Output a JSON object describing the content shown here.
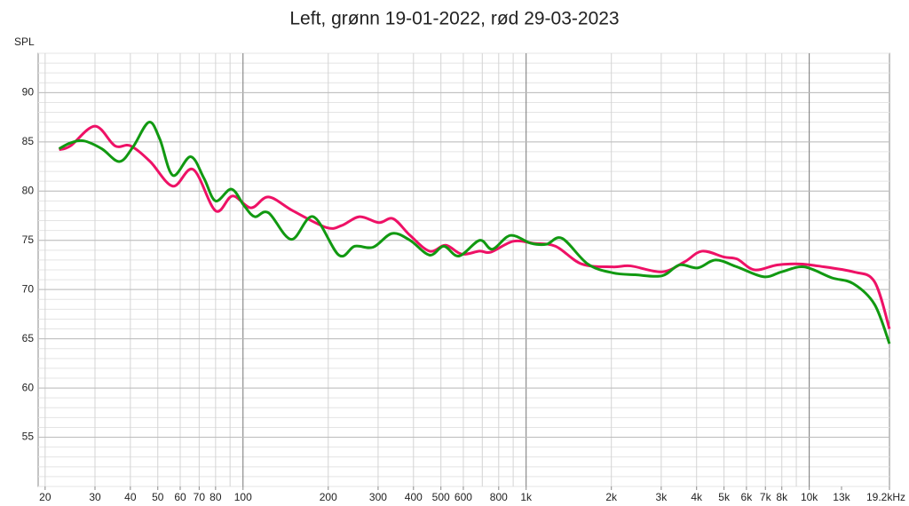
{
  "chart_data": {
    "type": "line",
    "title": "Left, grønn 19-01-2022, rød 29-03-2023",
    "y_label": "SPL",
    "x_scale": "log",
    "grid": true,
    "xlim": [
      18.9,
      19200
    ],
    "ylim": [
      50,
      94
    ],
    "yticks": [
      55,
      60,
      65,
      70,
      75,
      80,
      85,
      90
    ],
    "xticks": [
      20,
      30,
      40,
      50,
      60,
      70,
      80,
      100,
      200,
      300,
      400,
      500,
      600,
      800,
      {
        "value": 1000,
        "label": "1k"
      },
      {
        "value": 2000,
        "label": "2k"
      },
      {
        "value": 3000,
        "label": "3k"
      },
      {
        "value": 4000,
        "label": "4k"
      },
      {
        "value": 5000,
        "label": "5k"
      },
      {
        "value": 6000,
        "label": "6k"
      },
      {
        "value": 7000,
        "label": "7k"
      },
      {
        "value": 8000,
        "label": "8k"
      },
      {
        "value": 10000,
        "label": "10k"
      },
      {
        "value": 13000,
        "label": "13k"
      },
      {
        "value": 19200,
        "label": "19.2kHz"
      }
    ],
    "series": [
      {
        "name": "rød 29-03-2023",
        "color": "#ee1166",
        "x": [
          22.4,
          24.6,
          30,
          35.3,
          40,
          47,
          56.5,
          66.7,
          80,
          91.7,
          106.7,
          123,
          150,
          197,
          223,
          258,
          302,
          339,
          389,
          456,
          520,
          592,
          685,
          750,
          900,
          1060,
          1270,
          1570,
          2020,
          2340,
          3020,
          3620,
          4180,
          5000,
          5560,
          6410,
          7700,
          9240,
          10700,
          14300,
          17000,
          19200
        ],
        "values": [
          84.2,
          84.6,
          86.6,
          84.6,
          84.6,
          83,
          80.5,
          82.2,
          78,
          79.5,
          78.3,
          79.4,
          78,
          76.3,
          76.5,
          77.4,
          76.8,
          77.2,
          75.5,
          73.9,
          74.5,
          73.6,
          73.9,
          73.8,
          74.9,
          74.7,
          74.4,
          72.6,
          72.3,
          72.4,
          71.8,
          72.8,
          73.9,
          73.3,
          73.1,
          72,
          72.5,
          72.6,
          72.4,
          71.8,
          70.8,
          66
        ]
      },
      {
        "name": "grønn 19-01-2022",
        "color": "#119911",
        "x": [
          22.4,
          24.6,
          27.4,
          31.7,
          36.6,
          40.9,
          46.5,
          50.8,
          56.5,
          65.3,
          72.8,
          80,
          91,
          101,
          110,
          123,
          148,
          177,
          218,
          248,
          288,
          336,
          389,
          456,
          512,
          579,
          685,
          760,
          880,
          1040,
          1180,
          1340,
          1650,
          2020,
          2430,
          3020,
          3480,
          4040,
          4670,
          5560,
          6900,
          8000,
          9590,
          12000,
          14300,
          17000,
          19200
        ],
        "values": [
          84.3,
          84.9,
          85.1,
          84.3,
          83,
          84.5,
          87,
          85.3,
          81.6,
          83.5,
          81.3,
          79,
          80.2,
          78.5,
          77.4,
          77.8,
          75.1,
          77.4,
          73.5,
          74.4,
          74.3,
          75.7,
          75,
          73.5,
          74.4,
          73.4,
          75,
          74.1,
          75.5,
          74.7,
          74.6,
          75.2,
          72.6,
          71.7,
          71.5,
          71.4,
          72.5,
          72.2,
          73,
          72.3,
          71.3,
          71.8,
          72.3,
          71.2,
          70.6,
          68.5,
          64.5
        ]
      }
    ]
  }
}
